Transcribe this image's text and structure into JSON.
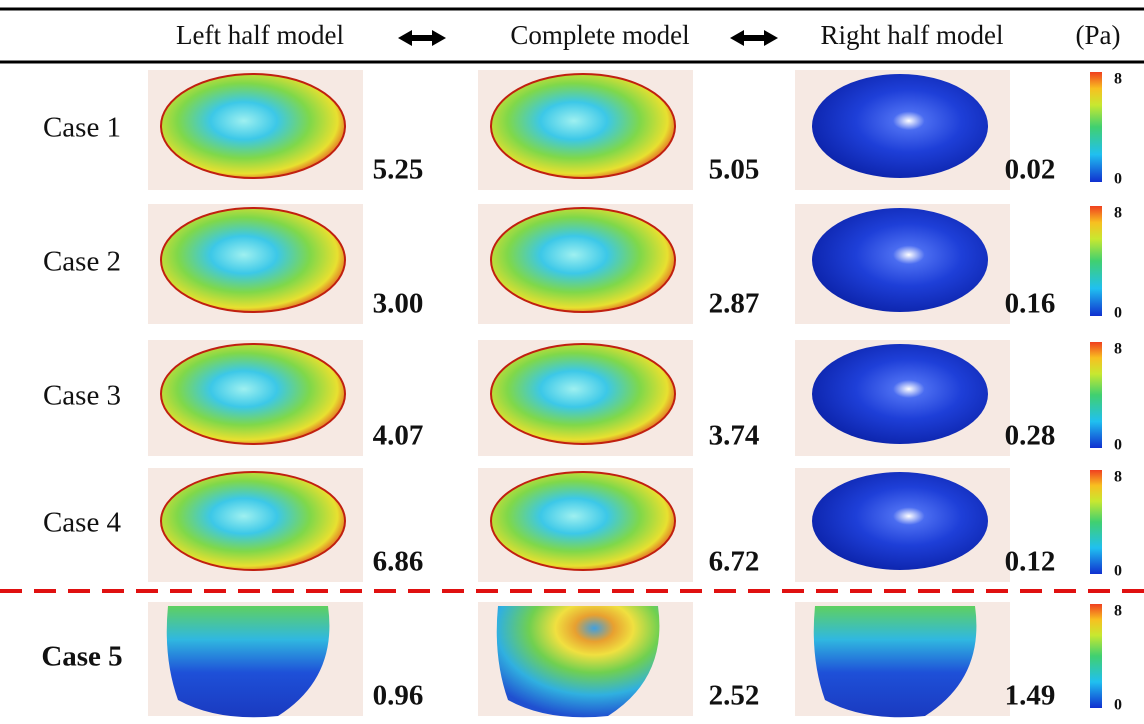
{
  "header": {
    "columns": [
      "Left half model",
      "Complete model",
      "Right half model"
    ],
    "unit": "(Pa)"
  },
  "rows": [
    {
      "label": "Case 1",
      "values": [
        "5.25",
        "5.05",
        "0.02"
      ]
    },
    {
      "label": "Case 2",
      "values": [
        "3.00",
        "2.87",
        "0.16"
      ]
    },
    {
      "label": "Case 3",
      "values": [
        "4.07",
        "3.74",
        "0.28"
      ]
    },
    {
      "label": "Case 4",
      "values": [
        "6.86",
        "6.72",
        "0.12"
      ]
    },
    {
      "label": "Case 5",
      "values": [
        "0.96",
        "2.52",
        "1.49"
      ]
    }
  ],
  "colorbar": {
    "max": "8",
    "min": "0"
  }
}
